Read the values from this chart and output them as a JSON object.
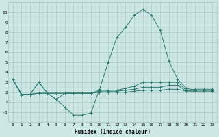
{
  "curve_x": [
    0,
    1,
    2,
    3,
    4,
    5,
    6,
    7,
    8,
    9,
    10,
    11,
    12,
    13,
    14,
    15,
    16,
    17,
    18,
    19,
    20,
    21,
    22,
    23
  ],
  "curve_y": [
    3.3,
    1.7,
    1.8,
    3.0,
    1.9,
    1.3,
    0.5,
    -0.3,
    -0.3,
    -0.1,
    2.3,
    5.0,
    7.5,
    8.5,
    9.7,
    10.3,
    9.7,
    8.2,
    5.1,
    3.3,
    2.4,
    2.2,
    2.2,
    2.2
  ],
  "flat1_x": [
    0,
    1,
    2,
    3,
    4,
    5,
    6,
    7,
    8,
    9,
    10,
    11,
    12,
    13,
    14,
    15,
    16,
    17,
    18,
    19,
    20,
    21,
    22,
    23
  ],
  "flat1_y": [
    3.3,
    1.8,
    1.8,
    1.9,
    1.9,
    1.9,
    1.9,
    1.9,
    1.9,
    1.9,
    2.0,
    2.0,
    2.0,
    2.0,
    2.1,
    2.2,
    2.2,
    2.2,
    2.3,
    2.3,
    2.1,
    2.1,
    2.1,
    2.1
  ],
  "flat2_x": [
    0,
    1,
    2,
    3,
    4,
    5,
    6,
    7,
    8,
    9,
    10,
    11,
    12,
    13,
    14,
    15,
    16,
    17,
    18,
    19,
    20,
    21,
    22,
    23
  ],
  "flat2_y": [
    3.3,
    1.8,
    1.8,
    1.9,
    1.9,
    1.9,
    1.9,
    1.9,
    1.9,
    1.9,
    2.1,
    2.1,
    2.1,
    2.2,
    2.3,
    2.5,
    2.5,
    2.5,
    2.7,
    2.7,
    2.1,
    2.2,
    2.2,
    2.2
  ],
  "flat3_x": [
    0,
    1,
    2,
    3,
    4,
    5,
    6,
    7,
    8,
    9,
    10,
    11,
    12,
    13,
    14,
    15,
    16,
    17,
    18,
    19,
    20,
    21,
    22,
    23
  ],
  "flat3_y": [
    3.3,
    1.8,
    1.8,
    3.0,
    1.9,
    1.3,
    1.9,
    1.9,
    1.9,
    1.9,
    2.2,
    2.2,
    2.2,
    2.4,
    2.6,
    3.0,
    3.0,
    3.0,
    3.0,
    3.0,
    2.2,
    2.3,
    2.3,
    2.3
  ],
  "color": "#2e7a6e",
  "bg_color": "#cce8e4",
  "grid_color_major": "#adc8c4",
  "grid_color_minor": "#bcd4d0",
  "xlabel": "Humidex (Indice chaleur)",
  "ylim": [
    -1,
    11
  ],
  "xlim": [
    -0.5,
    23.5
  ],
  "yticks": [
    0,
    1,
    2,
    3,
    4,
    5,
    6,
    7,
    8,
    9,
    10
  ],
  "ytick_labels": [
    "-0",
    "1",
    "2",
    "3",
    "4",
    "5",
    "6",
    "7",
    "8",
    "9",
    "10"
  ],
  "xticks": [
    0,
    1,
    2,
    3,
    4,
    5,
    6,
    7,
    8,
    9,
    10,
    11,
    12,
    13,
    14,
    15,
    16,
    17,
    18,
    19,
    20,
    21,
    22,
    23
  ]
}
